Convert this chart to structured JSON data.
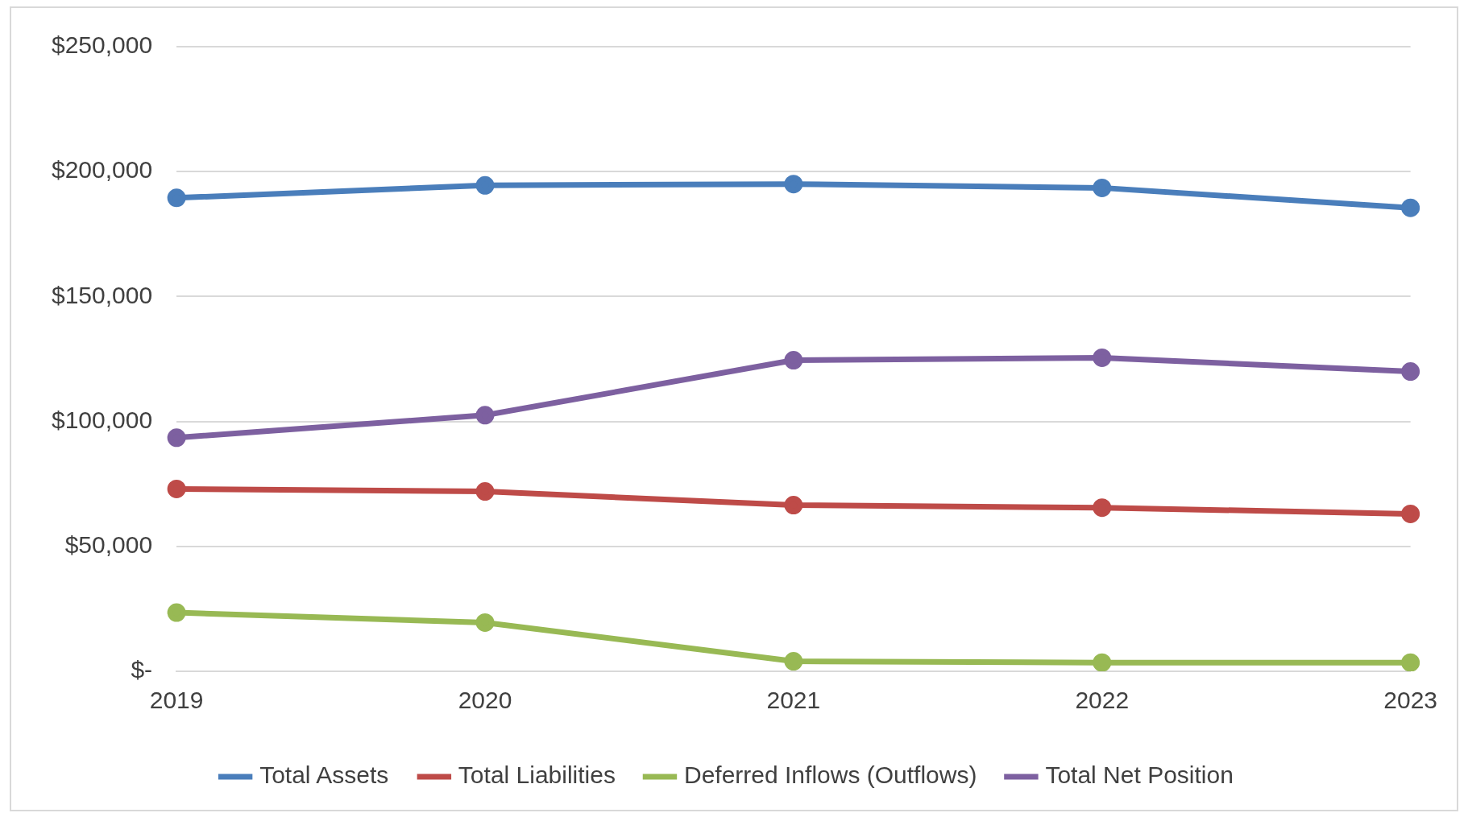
{
  "chart_data": {
    "type": "line",
    "categories": [
      "2019",
      "2020",
      "2021",
      "2022",
      "2023"
    ],
    "series": [
      {
        "name": "Total Assets",
        "color": "#4a7ebb",
        "values": [
          189500,
          194500,
          195000,
          193500,
          185500
        ]
      },
      {
        "name": "Total Liabilities",
        "color": "#be4b48",
        "values": [
          73000,
          72000,
          66500,
          65500,
          63000
        ]
      },
      {
        "name": "Deferred Inflows (Outflows)",
        "color": "#98b954",
        "values": [
          23500,
          19500,
          4000,
          3500,
          3500
        ]
      },
      {
        "name": "Total Net Position",
        "color": "#7d60a0",
        "values": [
          93500,
          102500,
          124500,
          125500,
          120000
        ]
      }
    ],
    "ylim": [
      0,
      250000
    ],
    "yticks": [
      {
        "value": 0,
        "label": "$-"
      },
      {
        "value": 50000,
        "label": "$50,000"
      },
      {
        "value": 100000,
        "label": "$100,000"
      },
      {
        "value": 150000,
        "label": "$150,000"
      },
      {
        "value": 200000,
        "label": "$200,000"
      },
      {
        "value": 250000,
        "label": "$250,000"
      }
    ],
    "grid": "y",
    "legend": "bottom",
    "marker": "circle",
    "line_style": "solid"
  }
}
